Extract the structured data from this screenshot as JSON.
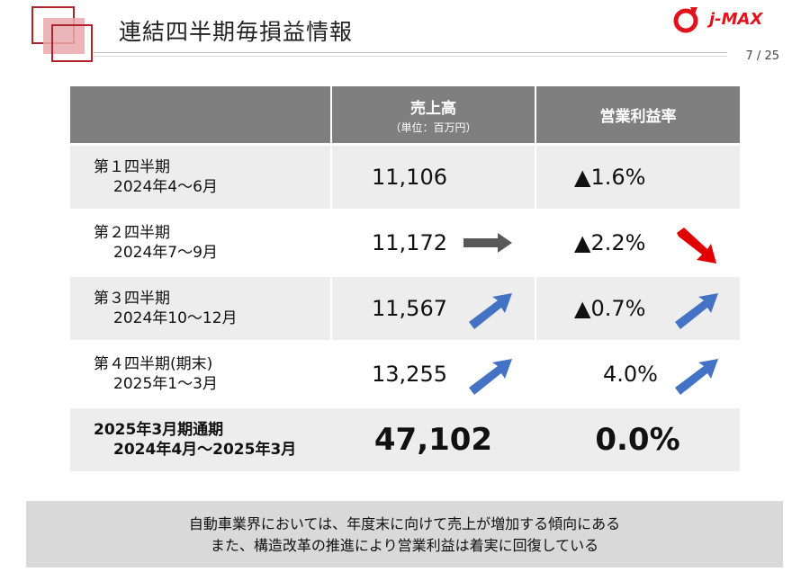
{
  "header": {
    "title": "連結四半期毎損益情報",
    "page_number": "7 / 25",
    "logo_text": "j-MAX"
  },
  "table": {
    "col_sales_title": "売上高",
    "col_sales_unit": "（単位：百万円）",
    "col_margin_title": "営業利益率",
    "rows": [
      {
        "label1": "第１四半期",
        "label2": "2024年4〜6月",
        "sales": "11,106",
        "margin": "▲1.6%",
        "sales_arrow": "none",
        "margin_arrow": "none"
      },
      {
        "label1": "第２四半期",
        "label2": "2024年7〜9月",
        "sales": "11,172",
        "margin": "▲2.2%",
        "sales_arrow": "flat",
        "margin_arrow": "down"
      },
      {
        "label1": "第３四半期",
        "label2": "2024年10〜12月",
        "sales": "11,567",
        "margin": "▲0.7%",
        "sales_arrow": "up",
        "margin_arrow": "up"
      },
      {
        "label1": "第４四半期(期末)",
        "label2": "2025年1〜3月",
        "sales": "13,255",
        "margin": "4.0%",
        "sales_arrow": "up",
        "margin_arrow": "up"
      }
    ],
    "total": {
      "label1": "2025年3月期通期",
      "label2": "2024年4月〜2025年3月",
      "sales": "47,102",
      "margin": "0.0%"
    }
  },
  "note": {
    "line1": "自動車業界においては、年度末に向けて売上が増加する傾向にある",
    "line2": "また、構造改革の推進により営業利益は着実に回復している"
  },
  "colors": {
    "header_gray": "#7f7f7f",
    "row_gray": "#ededed",
    "arrow_blue": "#4472c4",
    "arrow_red": "#e00000",
    "arrow_dark": "#595959",
    "brand_red": "#e0121b"
  }
}
